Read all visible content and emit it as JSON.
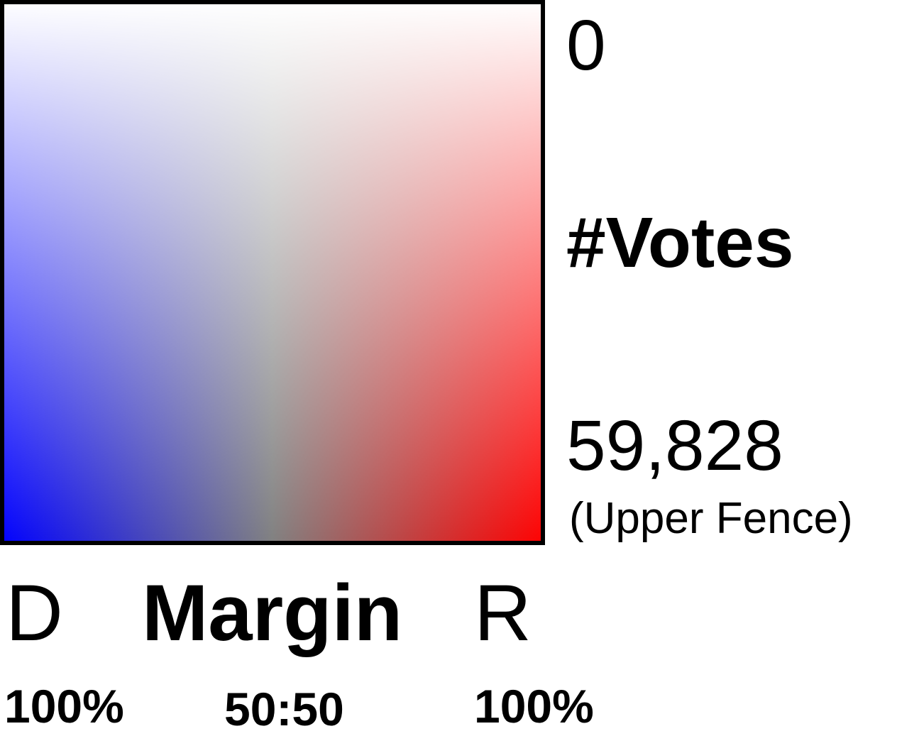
{
  "chart_data": {
    "type": "heatmap",
    "title": "",
    "x_axis": {
      "label": "Margin",
      "left_end_letter": "D",
      "right_end_letter": "R",
      "left_tick": "100%",
      "center_tick": "50:50",
      "right_tick": "100%"
    },
    "y_axis": {
      "label": "#Votes",
      "top_tick": "0",
      "bottom_tick": "59,828",
      "bottom_note": "(Upper Fence)",
      "range": [
        0,
        59828
      ]
    },
    "colors": {
      "democrat": "#0000ff",
      "republican": "#ff0000",
      "neutral_high_votes": "#808080",
      "zero_votes": "#ffffff",
      "border": "#000000"
    }
  }
}
